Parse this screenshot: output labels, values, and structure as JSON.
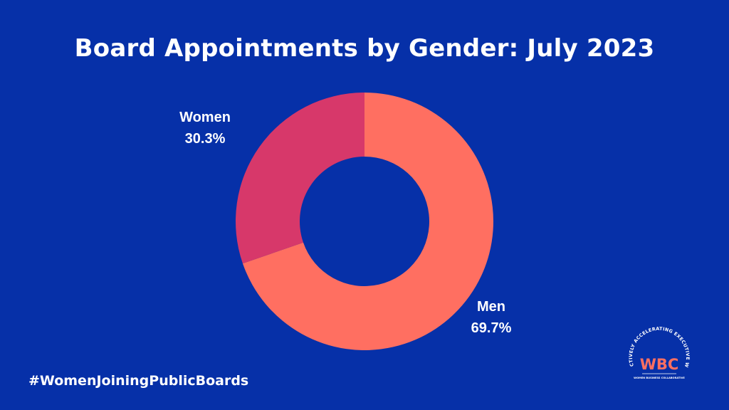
{
  "chart_data": {
    "type": "pie",
    "title": "Board Appointments by Gender: July 2023",
    "donut": true,
    "slices": [
      {
        "label": "Men",
        "value": 69.7,
        "display": "69.7%",
        "color": "#FF6F61"
      },
      {
        "label": "Women",
        "value": 30.3,
        "display": "30.3%",
        "color": "#D7386A"
      }
    ],
    "start": "top",
    "direction": "clockwise"
  },
  "footer": {
    "hashtag": "#WomenJoiningPublicBoards"
  },
  "logo": {
    "initials": "WBC",
    "arc_text": "COLLECTIVELY ACCELERATING EXECUTIVE WOMEN",
    "subtitle": "WOMEN BUSINESS COLLABORATIVE",
    "ring_color": "#FFFFFF",
    "initials_color": "#FF6F61"
  },
  "colors": {
    "background": "#0630A8",
    "text": "#FFFFFF"
  }
}
